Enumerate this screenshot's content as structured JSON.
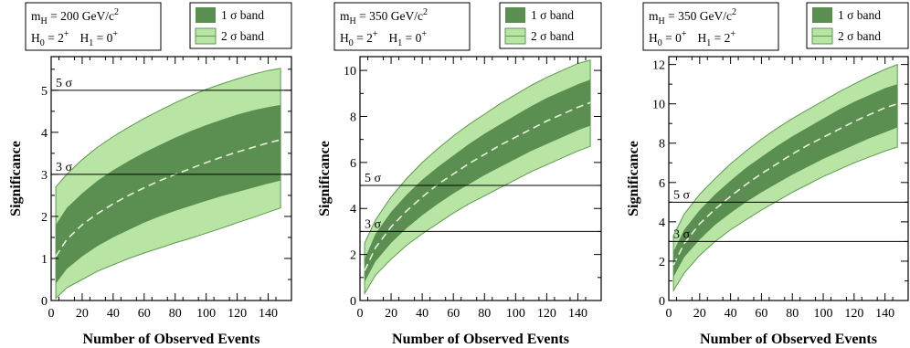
{
  "colors": {
    "band_1sigma": "#5b8f52",
    "band_2sigma": "#b8e4a4",
    "band_2sigma_edge": "#5d9a4f",
    "median": "#e6f2d8",
    "reference_line": "#000000"
  },
  "chart_data": [
    {
      "type": "area",
      "info_lines": [
        {
          "sym": "m",
          "sub": "H",
          "rest": " = 200 GeV/c",
          "sup": "2"
        },
        {
          "sym": "H",
          "sub": "0",
          "rest": " = 2",
          "sup": "+",
          "sym2": "H",
          "sub2": "1",
          "rest2": " = 0",
          "sup2": "+"
        }
      ],
      "legend": [
        {
          "label": "1 σ band",
          "key": "band_1sigma"
        },
        {
          "label": "2 σ band",
          "key": "band_2sigma"
        }
      ],
      "xlabel": "Number of Observed Events",
      "ylabel": "Significance",
      "xlim": [
        0,
        155
      ],
      "ylim": [
        0,
        5.8
      ],
      "xticks": [
        0,
        20,
        40,
        60,
        80,
        100,
        120,
        140
      ],
      "yticks": [
        0,
        1,
        2,
        3,
        4,
        5
      ],
      "reference_lines": [
        {
          "y": 3,
          "label": "3 σ"
        },
        {
          "y": 5,
          "label": "5 σ"
        }
      ],
      "x": [
        3,
        10,
        20,
        30,
        40,
        50,
        60,
        70,
        80,
        90,
        100,
        110,
        120,
        130,
        140,
        148
      ],
      "median": [
        1.05,
        1.45,
        1.8,
        2.07,
        2.3,
        2.5,
        2.68,
        2.85,
        3.0,
        3.14,
        3.28,
        3.41,
        3.53,
        3.64,
        3.75,
        3.82
      ],
      "band1_lower": [
        0.4,
        0.75,
        1.05,
        1.3,
        1.5,
        1.68,
        1.85,
        2.0,
        2.13,
        2.25,
        2.37,
        2.48,
        2.58,
        2.68,
        2.78,
        2.85
      ],
      "band1_upper": [
        1.8,
        2.2,
        2.55,
        2.85,
        3.1,
        3.32,
        3.52,
        3.7,
        3.87,
        4.03,
        4.17,
        4.3,
        4.42,
        4.52,
        4.6,
        4.65
      ],
      "band2_lower": [
        0.05,
        0.3,
        0.5,
        0.7,
        0.85,
        1.0,
        1.13,
        1.25,
        1.37,
        1.48,
        1.6,
        1.72,
        1.85,
        1.97,
        2.1,
        2.2
      ],
      "band2_upper": [
        2.7,
        3.0,
        3.35,
        3.65,
        3.9,
        4.12,
        4.33,
        4.52,
        4.7,
        4.87,
        5.02,
        5.15,
        5.27,
        5.38,
        5.47,
        5.52
      ]
    },
    {
      "type": "area",
      "info_lines": [
        {
          "sym": "m",
          "sub": "H",
          "rest": " = 350 GeV/c",
          "sup": "2"
        },
        {
          "sym": "H",
          "sub": "0",
          "rest": " = 2",
          "sup": "+",
          "sym2": "H",
          "sub2": "1",
          "rest2": " = 0",
          "sup2": "+"
        }
      ],
      "legend": [
        {
          "label": "1 σ band",
          "key": "band_1sigma"
        },
        {
          "label": "2 σ band",
          "key": "band_2sigma"
        }
      ],
      "xlabel": "Number of Observed Events",
      "ylabel": "Significance",
      "xlim": [
        0,
        155
      ],
      "ylim": [
        0,
        10.6
      ],
      "xticks": [
        0,
        20,
        40,
        60,
        80,
        100,
        120,
        140
      ],
      "yticks": [
        0,
        2,
        4,
        6,
        8,
        10
      ],
      "reference_lines": [
        {
          "y": 3,
          "label": "3 σ"
        },
        {
          "y": 5,
          "label": "5 σ"
        }
      ],
      "x": [
        3,
        10,
        20,
        30,
        40,
        50,
        60,
        70,
        80,
        90,
        100,
        110,
        120,
        130,
        140,
        148
      ],
      "median": [
        1.3,
        2.3,
        3.2,
        3.9,
        4.5,
        5.05,
        5.5,
        5.95,
        6.35,
        6.75,
        7.1,
        7.45,
        7.8,
        8.1,
        8.4,
        8.6
      ],
      "band1_lower": [
        0.8,
        1.7,
        2.5,
        3.15,
        3.7,
        4.2,
        4.65,
        5.05,
        5.45,
        5.8,
        6.15,
        6.5,
        6.8,
        7.1,
        7.4,
        7.6
      ],
      "band1_upper": [
        1.8,
        2.9,
        3.85,
        4.6,
        5.25,
        5.8,
        6.3,
        6.8,
        7.25,
        7.65,
        8.05,
        8.45,
        8.8,
        9.1,
        9.4,
        9.6
      ],
      "band2_lower": [
        0.3,
        1.1,
        1.8,
        2.4,
        2.9,
        3.35,
        3.8,
        4.2,
        4.55,
        4.9,
        5.25,
        5.6,
        5.9,
        6.2,
        6.5,
        6.7
      ],
      "band2_upper": [
        2.5,
        3.5,
        4.5,
        5.3,
        6.0,
        6.6,
        7.15,
        7.65,
        8.1,
        8.55,
        8.95,
        9.35,
        9.7,
        10.0,
        10.3,
        10.45
      ]
    },
    {
      "type": "area",
      "info_lines": [
        {
          "sym": "m",
          "sub": "H",
          "rest": " = 350 GeV/c",
          "sup": "2"
        },
        {
          "sym": "H",
          "sub": "0",
          "rest": " = 0",
          "sup": "+",
          "sym2": "H",
          "sub2": "1",
          "rest2": " = 2",
          "sup2": "+"
        }
      ],
      "legend": [
        {
          "label": "1 σ band",
          "key": "band_1sigma"
        },
        {
          "label": "2 σ band",
          "key": "band_2sigma"
        }
      ],
      "xlabel": "Number of Observed Events",
      "ylabel": "Significance",
      "xlim": [
        0,
        155
      ],
      "ylim": [
        0,
        12.4
      ],
      "xticks": [
        0,
        20,
        40,
        60,
        80,
        100,
        120,
        140
      ],
      "yticks": [
        0,
        2,
        4,
        6,
        8,
        10,
        12
      ],
      "reference_lines": [
        {
          "y": 3,
          "label": "3 σ"
        },
        {
          "y": 5,
          "label": "5 σ"
        }
      ],
      "x": [
        3,
        10,
        20,
        30,
        40,
        50,
        60,
        70,
        80,
        90,
        100,
        110,
        120,
        130,
        140,
        148
      ],
      "median": [
        1.8,
        2.9,
        3.9,
        4.65,
        5.3,
        5.9,
        6.45,
        6.95,
        7.45,
        7.9,
        8.3,
        8.7,
        9.1,
        9.45,
        9.8,
        10.0
      ],
      "band1_lower": [
        1.2,
        2.2,
        3.1,
        3.85,
        4.45,
        5.0,
        5.5,
        5.95,
        6.4,
        6.8,
        7.2,
        7.55,
        7.9,
        8.25,
        8.55,
        8.8
      ],
      "band1_upper": [
        2.5,
        3.6,
        4.6,
        5.4,
        6.1,
        6.75,
        7.3,
        7.85,
        8.35,
        8.8,
        9.25,
        9.7,
        10.1,
        10.45,
        10.8,
        11.0
      ],
      "band2_lower": [
        0.5,
        1.4,
        2.3,
        3.0,
        3.6,
        4.1,
        4.6,
        5.05,
        5.5,
        5.9,
        6.3,
        6.65,
        7.0,
        7.3,
        7.6,
        7.8
      ],
      "band2_upper": [
        3.3,
        4.4,
        5.4,
        6.2,
        6.95,
        7.6,
        8.2,
        8.75,
        9.25,
        9.7,
        10.15,
        10.6,
        11.0,
        11.4,
        11.75,
        12.0
      ]
    }
  ]
}
